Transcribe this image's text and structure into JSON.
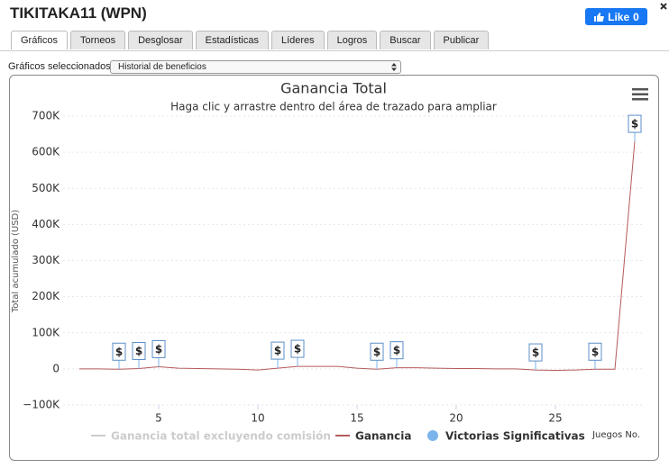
{
  "header": {
    "title": "TIKITAKA11 (WPN)",
    "like_label": "Like",
    "like_count": 0
  },
  "tabs": [
    "Gráficos",
    "Torneos",
    "Desglosar",
    "Estadísticas",
    "Líderes",
    "Logros",
    "Buscar",
    "Publicar"
  ],
  "selector": {
    "label": "Gráficos seleccionados:",
    "value": "Historial de beneficios"
  },
  "chart_data": {
    "type": "line",
    "title": "Ganancia Total",
    "subtitle": "Haga clic y arrastre dentro del área de trazado para ampliar",
    "y_label": "Total acumulado (USD)",
    "x_label": "Juegos No.",
    "x": [
      1,
      2,
      3,
      4,
      5,
      6,
      7,
      8,
      9,
      10,
      11,
      12,
      13,
      14,
      15,
      16,
      17,
      18,
      19,
      20,
      21,
      22,
      23,
      24,
      25,
      26,
      27,
      28,
      29
    ],
    "series": [
      {
        "name": "Ganancia total excluyendo comisión",
        "color": "#cccccc",
        "visible": false
      },
      {
        "name": "Ganancia",
        "color": "#b55a5c",
        "visible": true,
        "values": [
          0,
          0,
          -1000,
          1000,
          6000,
          2000,
          1000,
          0,
          -1000,
          -3000,
          2000,
          7000,
          7000,
          7000,
          2000,
          -1000,
          3000,
          3000,
          2000,
          1000,
          1000,
          0,
          0,
          -3000,
          -4000,
          -3000,
          -1000,
          -1000,
          630000
        ]
      }
    ],
    "flags": {
      "name": "Victorias Significativas",
      "color": "#7cb5ec",
      "label": "$",
      "x": [
        3,
        4,
        5,
        11,
        12,
        16,
        17,
        24,
        27,
        29
      ]
    },
    "xlim": [
      0.5,
      29.5
    ],
    "xticks": [
      5,
      10,
      15,
      20,
      25
    ],
    "ylim": [
      -100000,
      700000
    ],
    "yticks": [
      {
        "value": -100000,
        "label": "−100K"
      },
      0,
      {
        "value": 100000,
        "label": "100K"
      },
      {
        "value": 200000,
        "label": "200K"
      },
      {
        "value": 300000,
        "label": "300K"
      },
      {
        "value": 400000,
        "label": "400K"
      },
      {
        "value": 500000,
        "label": "500K"
      },
      {
        "value": 600000,
        "label": "600K"
      },
      {
        "value": 700000,
        "label": "700K"
      }
    ],
    "grid": true
  }
}
